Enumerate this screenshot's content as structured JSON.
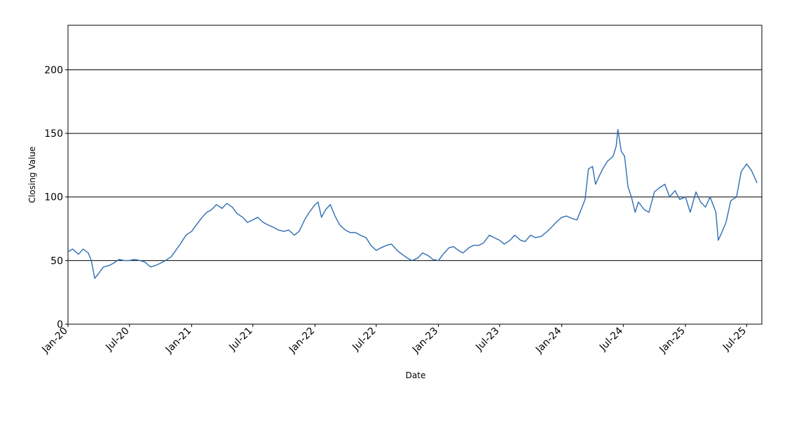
{
  "chart_data": {
    "type": "line",
    "title": "",
    "xlabel": "Date",
    "ylabel": "Closing Value",
    "ylim": [
      0,
      235
    ],
    "xlim": [
      "2020-01-01",
      "2025-08-15"
    ],
    "grid": "horizontal",
    "line_color": "#2f6db3",
    "y_ticks": [
      {
        "value": 0,
        "label": "0"
      },
      {
        "value": 50,
        "label": "50"
      },
      {
        "value": 100,
        "label": "100"
      },
      {
        "value": 150,
        "label": "150"
      },
      {
        "value": 200,
        "label": "200"
      }
    ],
    "x_ticks": [
      {
        "date": "2020-01-01",
        "label": "Jan-20"
      },
      {
        "date": "2020-07-01",
        "label": "Jul-20"
      },
      {
        "date": "2021-01-01",
        "label": "Jan-21"
      },
      {
        "date": "2021-07-01",
        "label": "Jul-21"
      },
      {
        "date": "2022-01-01",
        "label": "Jan-22"
      },
      {
        "date": "2022-07-01",
        "label": "Jul-22"
      },
      {
        "date": "2023-01-01",
        "label": "Jan-23"
      },
      {
        "date": "2023-07-01",
        "label": "Jul-23"
      },
      {
        "date": "2024-01-01",
        "label": "Jan-24"
      },
      {
        "date": "2024-07-01",
        "label": "Jul-24"
      },
      {
        "date": "2025-01-01",
        "label": "Jan-25"
      },
      {
        "date": "2025-07-01",
        "label": "Jul-25"
      }
    ],
    "series": [
      {
        "points": [
          [
            "2020-01-01",
            57
          ],
          [
            "2020-01-15",
            59
          ],
          [
            "2020-02-01",
            55
          ],
          [
            "2020-02-15",
            59
          ],
          [
            "2020-03-01",
            56
          ],
          [
            "2020-03-10",
            50
          ],
          [
            "2020-03-20",
            36
          ],
          [
            "2020-04-01",
            40
          ],
          [
            "2020-04-15",
            45
          ],
          [
            "2020-05-01",
            46
          ],
          [
            "2020-05-15",
            48
          ],
          [
            "2020-06-01",
            51
          ],
          [
            "2020-06-15",
            50
          ],
          [
            "2020-07-01",
            50
          ],
          [
            "2020-07-15",
            51
          ],
          [
            "2020-08-01",
            50
          ],
          [
            "2020-08-15",
            49
          ],
          [
            "2020-09-01",
            45
          ],
          [
            "2020-09-15",
            46
          ],
          [
            "2020-10-01",
            48
          ],
          [
            "2020-10-15",
            50
          ],
          [
            "2020-11-01",
            53
          ],
          [
            "2020-11-15",
            58
          ],
          [
            "2020-12-01",
            64
          ],
          [
            "2020-12-15",
            70
          ],
          [
            "2021-01-01",
            73
          ],
          [
            "2021-01-15",
            78
          ],
          [
            "2021-02-01",
            84
          ],
          [
            "2021-02-15",
            88
          ],
          [
            "2021-03-01",
            90
          ],
          [
            "2021-03-15",
            94
          ],
          [
            "2021-04-01",
            91
          ],
          [
            "2021-04-15",
            95
          ],
          [
            "2021-05-01",
            92
          ],
          [
            "2021-05-15",
            87
          ],
          [
            "2021-06-01",
            84
          ],
          [
            "2021-06-15",
            80
          ],
          [
            "2021-07-01",
            82
          ],
          [
            "2021-07-15",
            84
          ],
          [
            "2021-08-01",
            80
          ],
          [
            "2021-08-15",
            78
          ],
          [
            "2021-09-01",
            76
          ],
          [
            "2021-09-15",
            74
          ],
          [
            "2021-10-01",
            73
          ],
          [
            "2021-10-15",
            74
          ],
          [
            "2021-11-01",
            70
          ],
          [
            "2021-11-15",
            73
          ],
          [
            "2021-12-01",
            82
          ],
          [
            "2021-12-15",
            88
          ],
          [
            "2022-01-01",
            94
          ],
          [
            "2022-01-10",
            96
          ],
          [
            "2022-01-20",
            84
          ],
          [
            "2022-02-01",
            90
          ],
          [
            "2022-02-15",
            94
          ],
          [
            "2022-03-01",
            85
          ],
          [
            "2022-03-15",
            78
          ],
          [
            "2022-04-01",
            74
          ],
          [
            "2022-04-15",
            72
          ],
          [
            "2022-05-01",
            72
          ],
          [
            "2022-05-15",
            70
          ],
          [
            "2022-06-01",
            68
          ],
          [
            "2022-06-15",
            62
          ],
          [
            "2022-07-01",
            58
          ],
          [
            "2022-07-15",
            60
          ],
          [
            "2022-08-01",
            62
          ],
          [
            "2022-08-15",
            63
          ],
          [
            "2022-09-01",
            58
          ],
          [
            "2022-09-15",
            55
          ],
          [
            "2022-10-01",
            52
          ],
          [
            "2022-10-15",
            50
          ],
          [
            "2022-11-01",
            52
          ],
          [
            "2022-11-15",
            56
          ],
          [
            "2022-12-01",
            54
          ],
          [
            "2022-12-15",
            51
          ],
          [
            "2023-01-01",
            50
          ],
          [
            "2023-01-15",
            55
          ],
          [
            "2023-02-01",
            60
          ],
          [
            "2023-02-15",
            61
          ],
          [
            "2023-03-01",
            58
          ],
          [
            "2023-03-15",
            56
          ],
          [
            "2023-04-01",
            60
          ],
          [
            "2023-04-15",
            62
          ],
          [
            "2023-05-01",
            62
          ],
          [
            "2023-05-15",
            64
          ],
          [
            "2023-06-01",
            70
          ],
          [
            "2023-06-15",
            68
          ],
          [
            "2023-07-01",
            66
          ],
          [
            "2023-07-15",
            63
          ],
          [
            "2023-08-01",
            66
          ],
          [
            "2023-08-15",
            70
          ],
          [
            "2023-09-01",
            66
          ],
          [
            "2023-09-15",
            65
          ],
          [
            "2023-10-01",
            70
          ],
          [
            "2023-10-15",
            68
          ],
          [
            "2023-11-01",
            69
          ],
          [
            "2023-11-15",
            72
          ],
          [
            "2023-12-01",
            76
          ],
          [
            "2023-12-15",
            80
          ],
          [
            "2024-01-01",
            84
          ],
          [
            "2024-01-15",
            85
          ],
          [
            "2024-02-01",
            83
          ],
          [
            "2024-02-15",
            82
          ],
          [
            "2024-03-01",
            92
          ],
          [
            "2024-03-10",
            98
          ],
          [
            "2024-03-20",
            122
          ],
          [
            "2024-04-01",
            124
          ],
          [
            "2024-04-10",
            110
          ],
          [
            "2024-04-20",
            116
          ],
          [
            "2024-05-01",
            122
          ],
          [
            "2024-05-15",
            128
          ],
          [
            "2024-06-01",
            132
          ],
          [
            "2024-06-10",
            140
          ],
          [
            "2024-06-15",
            153
          ],
          [
            "2024-06-25",
            136
          ],
          [
            "2024-07-05",
            132
          ],
          [
            "2024-07-15",
            108
          ],
          [
            "2024-07-25",
            100
          ],
          [
            "2024-08-05",
            88
          ],
          [
            "2024-08-15",
            96
          ],
          [
            "2024-09-01",
            90
          ],
          [
            "2024-09-15",
            88
          ],
          [
            "2024-10-01",
            104
          ],
          [
            "2024-10-15",
            107
          ],
          [
            "2024-11-01",
            110
          ],
          [
            "2024-11-15",
            100
          ],
          [
            "2024-12-01",
            105
          ],
          [
            "2024-12-15",
            98
          ],
          [
            "2025-01-01",
            100
          ],
          [
            "2025-01-15",
            88
          ],
          [
            "2025-02-01",
            104
          ],
          [
            "2025-02-15",
            96
          ],
          [
            "2025-03-01",
            92
          ],
          [
            "2025-03-15",
            100
          ],
          [
            "2025-04-01",
            88
          ],
          [
            "2025-04-08",
            66
          ],
          [
            "2025-04-15",
            70
          ],
          [
            "2025-05-01",
            80
          ],
          [
            "2025-05-15",
            97
          ],
          [
            "2025-06-01",
            100
          ],
          [
            "2025-06-15",
            120
          ],
          [
            "2025-07-01",
            126
          ],
          [
            "2025-07-15",
            121
          ],
          [
            "2025-08-01",
            111
          ]
        ]
      }
    ]
  }
}
